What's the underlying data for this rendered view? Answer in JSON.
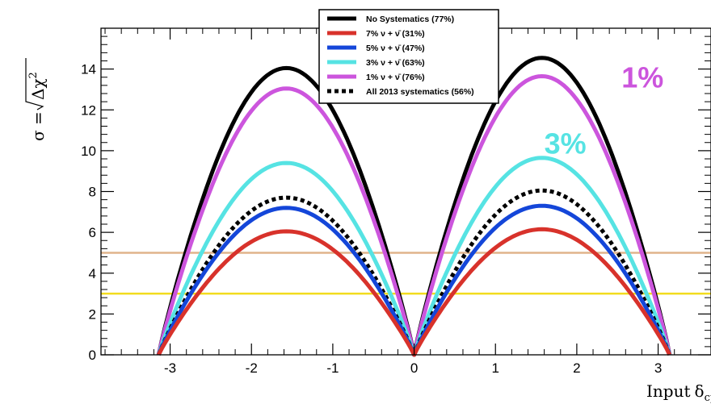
{
  "chart_data": {
    "type": "line",
    "xlabel_text": "Input",
    "xlabel_symbol": "δ",
    "xlabel_sub": "cp",
    "ylabel_left": "σ = ",
    "ylabel_radicand": "Δχ",
    "ylabel_power": "2",
    "xlim": [
      -3.85,
      3.65
    ],
    "ylim": [
      0,
      16
    ],
    "x_ticks": [
      -3,
      -2,
      -1,
      0,
      1,
      2,
      3
    ],
    "x_tick_labels": [
      "-3",
      "-2",
      "-1",
      "0",
      "1",
      "2",
      "3"
    ],
    "y_ticks": [
      0,
      2,
      4,
      6,
      8,
      10,
      12,
      14
    ],
    "y_tick_labels": [
      "0",
      "2",
      "4",
      "6",
      "8",
      "10",
      "12",
      "14"
    ],
    "legend_position": "top-center",
    "series": [
      {
        "name": "No Systematics (77%)",
        "color": "#000000",
        "style": "solid",
        "peak_left": 14.05,
        "peak_right": 14.55
      },
      {
        "name": "7% ν + ν̄ (31%)",
        "color": "#d8322b",
        "style": "solid",
        "peak_left": 6.05,
        "peak_right": 6.15
      },
      {
        "name": "5% ν + ν̄ (47%)",
        "color": "#1446d9",
        "style": "solid",
        "peak_left": 7.2,
        "peak_right": 7.3
      },
      {
        "name": "3% ν + ν̄ (63%)",
        "color": "#56e3e3",
        "style": "solid",
        "peak_left": 9.4,
        "peak_right": 9.65
      },
      {
        "name": "1% ν + ν̄ (76%)",
        "color": "#cc55dd",
        "style": "solid",
        "peak_left": 13.05,
        "peak_right": 13.65
      },
      {
        "name": "All 2013 systematics (56%)",
        "color": "#000000",
        "style": "dotted",
        "peak_left": 7.7,
        "peak_right": 8.05
      }
    ],
    "horizontal_lines": [
      {
        "y": 5,
        "color": "#e0b48c"
      },
      {
        "y": 3,
        "color": "#f2dc1e"
      }
    ],
    "annotations": [
      {
        "text": "1%",
        "color": "#cc55dd",
        "x": 2.55,
        "y": 13.1
      },
      {
        "text": "3%",
        "color": "#56e3e3",
        "x": 1.6,
        "y": 9.85
      }
    ]
  }
}
